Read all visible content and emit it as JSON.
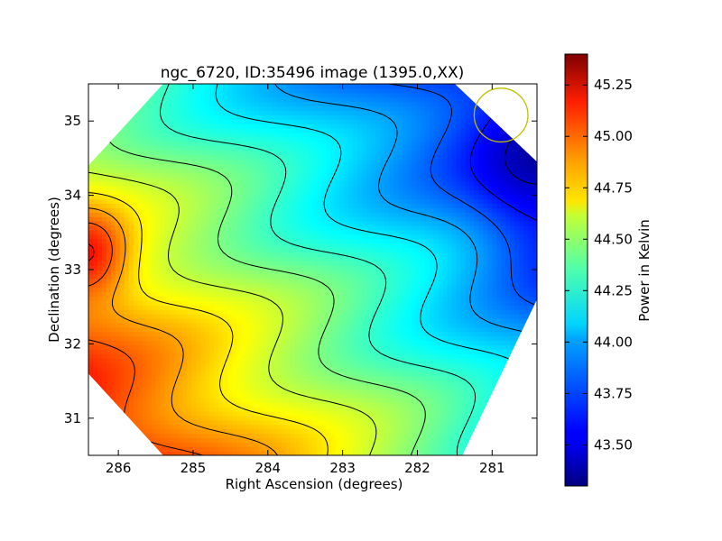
{
  "chart_data": {
    "type": "heatmap",
    "title": "ngc_6720, ID:35496 image (1395.0,XX)",
    "xlabel": "Right Ascension (degrees)",
    "ylabel": "Declination (degrees)",
    "xlim": [
      286.4,
      280.4
    ],
    "ylim": [
      30.5,
      35.5
    ],
    "x_ticks": [
      286,
      285,
      284,
      283,
      282,
      281
    ],
    "x_tick_labels": [
      "286",
      "285",
      "284",
      "283",
      "282",
      "281"
    ],
    "y_ticks": [
      31,
      32,
      33,
      34,
      35
    ],
    "y_tick_labels": [
      "31",
      "32",
      "33",
      "34",
      "35"
    ],
    "grid": false,
    "colormap": "jet",
    "colorbar": {
      "label": "Power in Kelvin",
      "range": [
        43.3,
        45.4
      ],
      "ticks": [
        43.5,
        43.75,
        44.0,
        44.25,
        44.5,
        44.75,
        45.0,
        45.25
      ],
      "tick_labels": [
        "43.50",
        "43.75",
        "44.00",
        "44.25",
        "44.50",
        "44.75",
        "45.00",
        "45.25"
      ]
    },
    "field_model": {
      "description_values": "approximate brightness field: warm peak near RA 286.3 Dec 33.2, cold minimum near RA 280.5 Dec 34.0",
      "max_value": 45.35,
      "min_value": 43.33,
      "peak_ra": 286.35,
      "peak_dec": 33.2,
      "min_ra": 280.5,
      "min_dec": 34.0
    },
    "contour_levels": [
      43.45,
      43.6,
      43.75,
      43.9,
      44.05,
      44.2,
      44.35,
      44.5,
      44.65,
      44.8,
      44.95,
      45.1,
      45.25
    ],
    "beam_marker": {
      "ra": 280.88,
      "dec": 35.08,
      "radius_deg": 0.36,
      "color": "#bfbf00"
    }
  }
}
